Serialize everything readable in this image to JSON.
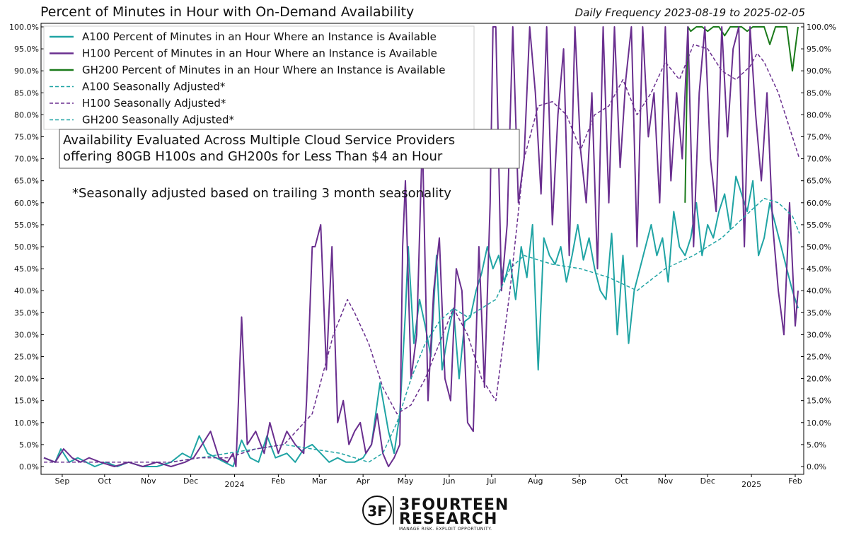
{
  "chart_data": {
    "type": "line",
    "title": "Percent of Minutes in Hour with On-Demand Availability",
    "subtitle": "Daily Frequency 2023-08-19 to 2025-02-05",
    "ylim": [
      0,
      100
    ],
    "y_ticks": [
      "0.0%",
      "5.0%",
      "10.0%",
      "15.0%",
      "20.0%",
      "25.0%",
      "30.0%",
      "35.0%",
      "40.0%",
      "45.0%",
      "50.0%",
      "55.0%",
      "60.0%",
      "65.0%",
      "70.0%",
      "75.0%",
      "80.0%",
      "85.0%",
      "90.0%",
      "95.0%",
      "100.0%"
    ],
    "x_ticks": [
      {
        "label": "Sep",
        "day": 13
      },
      {
        "label": "Oct",
        "day": 43
      },
      {
        "label": "Nov",
        "day": 74
      },
      {
        "label": "Dec",
        "day": 104
      },
      {
        "label": "2024",
        "day": 135
      },
      {
        "label": "Feb",
        "day": 166
      },
      {
        "label": "Mar",
        "day": 195
      },
      {
        "label": "Apr",
        "day": 226
      },
      {
        "label": "May",
        "day": 256
      },
      {
        "label": "Jun",
        "day": 287
      },
      {
        "label": "Jul",
        "day": 317
      },
      {
        "label": "Aug",
        "day": 348
      },
      {
        "label": "Sep",
        "day": 379
      },
      {
        "label": "Oct",
        "day": 409
      },
      {
        "label": "Nov",
        "day": 440
      },
      {
        "label": "Dec",
        "day": 470
      },
      {
        "label": "2025",
        "day": 501
      },
      {
        "label": "Feb",
        "day": 532
      }
    ],
    "x_range": [
      0,
      536
    ],
    "series": [
      {
        "name": "A100 Percent of Minutes in an Hour Where an Instance is Available",
        "color": "#20a4a4",
        "style": "solid",
        "x": [
          0,
          8,
          12,
          18,
          24,
          30,
          36,
          44,
          52,
          60,
          70,
          80,
          90,
          98,
          104,
          110,
          116,
          122,
          128,
          134,
          140,
          146,
          152,
          158,
          164,
          172,
          178,
          184,
          190,
          196,
          202,
          208,
          214,
          220,
          226,
          232,
          238,
          244,
          248,
          252,
          256,
          258,
          262,
          266,
          270,
          274,
          278,
          282,
          286,
          290,
          294,
          298,
          302,
          306,
          310,
          314,
          318,
          322,
          326,
          330,
          334,
          338,
          342,
          346,
          350,
          354,
          358,
          362,
          366,
          370,
          374,
          378,
          382,
          386,
          390,
          394,
          398,
          402,
          406,
          410,
          414,
          418,
          422,
          426,
          430,
          434,
          438,
          442,
          446,
          450,
          454,
          458,
          462,
          466,
          470,
          474,
          478,
          482,
          486,
          490,
          494,
          498,
          502,
          506,
          510,
          514,
          518,
          522,
          526,
          530,
          534
        ],
        "y": [
          2,
          1,
          4,
          1,
          2,
          1,
          0,
          1,
          0,
          1,
          0,
          0,
          1,
          3,
          2,
          7,
          3,
          2,
          1,
          0,
          6,
          2,
          1,
          7,
          2,
          3,
          1,
          4,
          5,
          3,
          1,
          2,
          1,
          1,
          2,
          5,
          19,
          8,
          3,
          12,
          35,
          50,
          28,
          38,
          32,
          25,
          48,
          22,
          30,
          36,
          20,
          33,
          34,
          40,
          44,
          50,
          45,
          48,
          42,
          47,
          38,
          50,
          43,
          55,
          22,
          52,
          48,
          46,
          50,
          42,
          48,
          55,
          47,
          52,
          45,
          40,
          38,
          53,
          30,
          48,
          28,
          40,
          45,
          50,
          55,
          48,
          52,
          42,
          58,
          50,
          48,
          52,
          60,
          48,
          55,
          52,
          58,
          62,
          54,
          66,
          62,
          58,
          65,
          48,
          52,
          60,
          55,
          50,
          45,
          40,
          36
        ]
      },
      {
        "name": "H100 Percent of Minutes in an Hour Where an Instance is Available",
        "color": "#6a2f8f",
        "style": "solid",
        "x": [
          0,
          8,
          14,
          20,
          26,
          32,
          40,
          50,
          60,
          70,
          80,
          90,
          100,
          106,
          112,
          118,
          124,
          130,
          134,
          136,
          140,
          144,
          150,
          156,
          160,
          166,
          172,
          178,
          184,
          186,
          190,
          192,
          196,
          200,
          204,
          208,
          212,
          216,
          220,
          224,
          228,
          232,
          236,
          240,
          244,
          248,
          252,
          254,
          256,
          260,
          264,
          268,
          272,
          276,
          280,
          284,
          288,
          292,
          296,
          300,
          304,
          308,
          312,
          316,
          318,
          320,
          324,
          328,
          332,
          336,
          340,
          344,
          348,
          352,
          356,
          360,
          364,
          368,
          372,
          376,
          380,
          384,
          388,
          392,
          396,
          400,
          404,
          408,
          412,
          416,
          420,
          424,
          428,
          432,
          436,
          440,
          444,
          448,
          452,
          456,
          460,
          464,
          468,
          472,
          476,
          480,
          484,
          488,
          492,
          496,
          500,
          504,
          508,
          512,
          516,
          520,
          524,
          528,
          532,
          534
        ],
        "y": [
          2,
          1,
          4,
          2,
          1,
          2,
          1,
          0,
          1,
          0,
          1,
          0,
          1,
          2,
          5,
          8,
          2,
          1,
          3,
          0,
          34,
          5,
          8,
          3,
          10,
          3,
          8,
          5,
          3,
          15,
          50,
          50,
          55,
          22,
          50,
          10,
          15,
          5,
          8,
          10,
          3,
          5,
          12,
          3,
          0,
          2,
          5,
          50,
          65,
          20,
          30,
          75,
          15,
          40,
          52,
          20,
          15,
          45,
          40,
          10,
          8,
          50,
          18,
          60,
          100,
          100,
          40,
          55,
          100,
          60,
          70,
          100,
          85,
          62,
          100,
          55,
          80,
          95,
          48,
          100,
          72,
          60,
          85,
          45,
          100,
          60,
          100,
          68,
          88,
          100,
          50,
          100,
          75,
          85,
          60,
          100,
          65,
          85,
          70,
          100,
          50,
          85,
          100,
          70,
          58,
          100,
          75,
          95,
          100,
          50,
          100,
          80,
          65,
          85,
          55,
          40,
          30,
          60,
          32,
          40
        ]
      },
      {
        "name": "GH200 Percent of Minutes in an Hour Where an Instance is Available",
        "color": "#1a7a1a",
        "style": "solid",
        "x": [
          454,
          456,
          458,
          462,
          466,
          470,
          474,
          478,
          482,
          486,
          490,
          494,
          498,
          502,
          506,
          510,
          514,
          518,
          522,
          526,
          530,
          534
        ],
        "y": [
          60,
          100,
          99,
          100,
          100,
          99,
          100,
          100,
          98,
          100,
          100,
          100,
          99,
          100,
          100,
          100,
          96,
          100,
          100,
          100,
          90,
          100
        ]
      },
      {
        "name": "A100 Seasonally Adjusted*",
        "color": "#20a4a4",
        "style": "dashed",
        "x": [
          0,
          30,
          60,
          90,
          110,
          130,
          150,
          170,
          190,
          210,
          230,
          240,
          250,
          260,
          270,
          280,
          290,
          300,
          310,
          320,
          330,
          340,
          350,
          360,
          380,
          400,
          420,
          440,
          460,
          480,
          500,
          510,
          520,
          530,
          535
        ],
        "y": [
          1,
          1,
          1,
          1,
          2,
          3,
          4,
          5,
          4,
          3,
          1,
          3,
          10,
          20,
          28,
          33,
          36,
          34,
          36,
          38,
          45,
          48,
          47,
          46,
          45,
          43,
          40,
          45,
          48,
          52,
          58,
          61,
          60,
          57,
          53
        ]
      },
      {
        "name": "H100 Seasonally Adjusted*",
        "color": "#6a2f8f",
        "style": "dashed",
        "x": [
          0,
          30,
          60,
          90,
          110,
          130,
          150,
          170,
          190,
          205,
          215,
          220,
          230,
          240,
          250,
          260,
          270,
          280,
          290,
          300,
          310,
          320,
          330,
          340,
          350,
          360,
          370,
          380,
          390,
          400,
          410,
          420,
          430,
          440,
          450,
          460,
          470,
          480,
          490,
          500,
          505,
          510,
          520,
          530,
          535
        ],
        "y": [
          1,
          1,
          1,
          1,
          2,
          2,
          4,
          5,
          12,
          30,
          38,
          35,
          28,
          18,
          12,
          14,
          20,
          28,
          36,
          30,
          20,
          15,
          40,
          70,
          82,
          83,
          80,
          72,
          80,
          82,
          88,
          80,
          85,
          92,
          88,
          96,
          95,
          90,
          88,
          91,
          94,
          92,
          85,
          75,
          70
        ]
      }
    ],
    "legend": [
      "A100 Percent of Minutes in an Hour Where an Instance is Available",
      "H100 Percent of Minutes in an Hour Where an Instance is Available",
      "GH200 Percent of Minutes in an Hour Where an Instance is Available",
      "A100 Seasonally Adjusted*",
      "H100 Seasonally Adjusted*",
      "GH200 Seasonally Adjusted*"
    ],
    "legend_colors": [
      "#20a4a4",
      "#6a2f8f",
      "#1a7a1a",
      "#20a4a4",
      "#6a2f8f",
      "#20a4a4"
    ],
    "legend_dashed": [
      false,
      false,
      false,
      true,
      true,
      true
    ],
    "annotation_box": [
      "Availability Evaluated Across Multiple Cloud Service Providers",
      "offering 80GB H100s and GH200s for Less Than $4 an Hour"
    ],
    "annotation_note": "*Seasonally adjusted based on trailing 3 month seasonality"
  },
  "logo": {
    "mark": "3F",
    "name_line1": "3FOURTEEN",
    "name_line2": "RESEARCH",
    "tagline": "MANAGE RISK. EXPLOIT OPPORTUNITY."
  }
}
